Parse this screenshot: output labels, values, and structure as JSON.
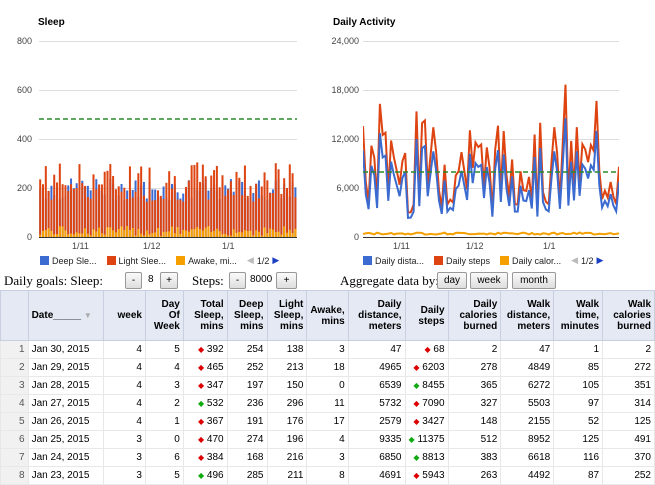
{
  "sleep_chart": {
    "title": "Sleep",
    "y_ticks": [
      "800",
      "600",
      "400",
      "200",
      "0"
    ],
    "x_ticks": [
      "1/11",
      "1/12",
      "1/1"
    ],
    "legend": [
      {
        "label": "Deep Sle...",
        "color": "#3b6bd0"
      },
      {
        "label": "Light Slee...",
        "color": "#dd4411"
      },
      {
        "label": "Awake, mi...",
        "color": "#f5a000"
      }
    ],
    "pager": "1/2"
  },
  "activity_chart": {
    "title": "Daily Activity",
    "y_ticks": [
      "24,000",
      "18,000",
      "12,000",
      "6,000",
      "0"
    ],
    "x_ticks": [
      "1/11",
      "1/12",
      "1/1"
    ],
    "legend": [
      {
        "label": "Daily dista...",
        "color": "#3b6bd0"
      },
      {
        "label": "Daily steps",
        "color": "#dd4411"
      },
      {
        "label": "Daily calor...",
        "color": "#f5a000"
      }
    ],
    "pager": "1/2"
  },
  "goals": {
    "label": "Daily goals: Sleep:",
    "sleep_value": "8",
    "steps_label": "Steps:",
    "steps_value": "8000",
    "minus": "-",
    "plus": "+"
  },
  "aggregate": {
    "label": "Aggregate data by:",
    "options": [
      "day",
      "week",
      "month"
    ]
  },
  "table": {
    "headers": [
      "Date_____",
      "week",
      "Day Of Week",
      "Total Sleep, mins",
      "Deep Sleep, mins",
      "Light Sleep, mins",
      "Awake, mins",
      "Daily distance, meters",
      "Daily steps",
      "Daily calories burned",
      "Walk distance, meters",
      "Walk time, minutes",
      "Walk calories burned"
    ],
    "rows": [
      {
        "n": "1",
        "date": "Jan 30, 2015",
        "week": "4",
        "dow": "5",
        "sleep_dir": "down",
        "total": "392",
        "deep": "254",
        "light": "138",
        "awake": "3",
        "dist": "47",
        "steps_dir": "down",
        "steps": "68",
        "cal": "2",
        "wdist": "47",
        "wtime": "1",
        "wcal": "2"
      },
      {
        "n": "2",
        "date": "Jan 29, 2015",
        "week": "4",
        "dow": "4",
        "sleep_dir": "down",
        "total": "465",
        "deep": "252",
        "light": "213",
        "awake": "18",
        "dist": "4965",
        "steps_dir": "down",
        "steps": "6203",
        "cal": "278",
        "wdist": "4849",
        "wtime": "85",
        "wcal": "272"
      },
      {
        "n": "3",
        "date": "Jan 28, 2015",
        "week": "4",
        "dow": "3",
        "sleep_dir": "down",
        "total": "347",
        "deep": "197",
        "light": "150",
        "awake": "0",
        "dist": "6539",
        "steps_dir": "up",
        "steps": "8455",
        "cal": "365",
        "wdist": "6272",
        "wtime": "105",
        "wcal": "351"
      },
      {
        "n": "4",
        "date": "Jan 27, 2015",
        "week": "4",
        "dow": "2",
        "sleep_dir": "up",
        "total": "532",
        "deep": "236",
        "light": "296",
        "awake": "11",
        "dist": "5732",
        "steps_dir": "down",
        "steps": "7090",
        "cal": "327",
        "wdist": "5503",
        "wtime": "97",
        "wcal": "314"
      },
      {
        "n": "5",
        "date": "Jan 26, 2015",
        "week": "4",
        "dow": "1",
        "sleep_dir": "down",
        "total": "367",
        "deep": "191",
        "light": "176",
        "awake": "17",
        "dist": "2579",
        "steps_dir": "down",
        "steps": "3427",
        "cal": "148",
        "wdist": "2155",
        "wtime": "52",
        "wcal": "125"
      },
      {
        "n": "6",
        "date": "Jan 25, 2015",
        "week": "3",
        "dow": "0",
        "sleep_dir": "down",
        "total": "470",
        "deep": "274",
        "light": "196",
        "awake": "4",
        "dist": "9335",
        "steps_dir": "up",
        "steps": "11375",
        "cal": "512",
        "wdist": "8952",
        "wtime": "125",
        "wcal": "491"
      },
      {
        "n": "7",
        "date": "Jan 24, 2015",
        "week": "3",
        "dow": "6",
        "sleep_dir": "down",
        "total": "384",
        "deep": "168",
        "light": "216",
        "awake": "3",
        "dist": "6850",
        "steps_dir": "up",
        "steps": "8813",
        "cal": "383",
        "wdist": "6618",
        "wtime": "116",
        "wcal": "370"
      },
      {
        "n": "8",
        "date": "Jan 23, 2015",
        "week": "3",
        "dow": "5",
        "sleep_dir": "up",
        "total": "496",
        "deep": "285",
        "light": "211",
        "awake": "8",
        "dist": "4691",
        "steps_dir": "down",
        "steps": "5943",
        "cal": "263",
        "wdist": "4492",
        "wtime": "87",
        "wcal": "252"
      }
    ]
  }
}
